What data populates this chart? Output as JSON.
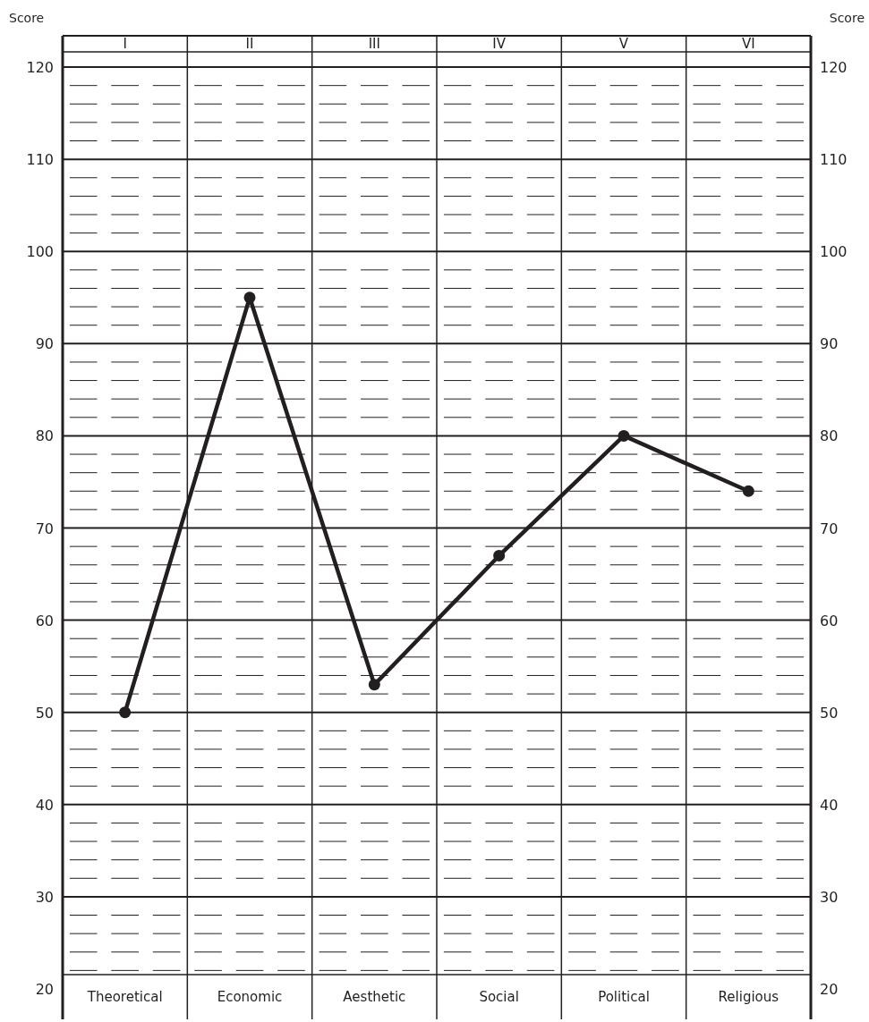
{
  "chart_data": {
    "type": "line",
    "ylabel": "Score",
    "y2label": "Score",
    "categories": [
      "Theoretical",
      "Economic",
      "Aesthetic",
      "Social",
      "Political",
      "Religious"
    ],
    "annotations": [
      "I",
      "II",
      "III",
      "IV",
      "V",
      "VI"
    ],
    "series": [
      {
        "color": "#231f20",
        "values": [
          50,
          95,
          53,
          67,
          80,
          74
        ]
      }
    ],
    "ylim": [
      16.7,
      123.4
    ],
    "y2lim": [
      16.7,
      123.4
    ],
    "yticks": [
      20,
      {
        "value": 22,
        "label": null
      },
      {
        "value": 24,
        "label": null
      },
      {
        "value": 26,
        "label": null
      },
      {
        "value": 28,
        "label": null
      },
      30,
      {
        "value": 32,
        "label": null
      },
      {
        "value": 34,
        "label": null
      },
      {
        "value": 36,
        "label": null
      },
      {
        "value": 38,
        "label": null
      },
      40,
      {
        "value": 42,
        "label": null
      },
      {
        "value": 44,
        "label": null
      },
      {
        "value": 46,
        "label": null
      },
      {
        "value": 48,
        "label": null
      },
      50,
      {
        "value": 52,
        "label": null
      },
      {
        "value": 54,
        "label": null
      },
      {
        "value": 56,
        "label": null
      },
      {
        "value": 58,
        "label": null
      },
      60,
      {
        "value": 62,
        "label": null
      },
      {
        "value": 64,
        "label": null
      },
      {
        "value": 66,
        "label": null
      },
      {
        "value": 68,
        "label": null
      },
      70,
      {
        "value": 72,
        "label": null
      },
      {
        "value": 74,
        "label": null
      },
      {
        "value": 76,
        "label": null
      },
      {
        "value": 78,
        "label": null
      },
      80,
      {
        "value": 82,
        "label": null
      },
      {
        "value": 84,
        "label": null
      },
      {
        "value": 86,
        "label": null
      },
      {
        "value": 88,
        "label": null
      },
      90,
      {
        "value": 92,
        "label": null
      },
      {
        "value": 94,
        "label": null
      },
      {
        "value": 96,
        "label": null
      },
      {
        "value": 98,
        "label": null
      },
      100,
      {
        "value": 102,
        "label": null
      },
      {
        "value": 104,
        "label": null
      },
      {
        "value": 106,
        "label": null
      },
      {
        "value": 108,
        "label": null
      },
      110,
      {
        "value": 112,
        "label": null
      },
      {
        "value": 114,
        "label": null
      },
      {
        "value": 116,
        "label": null
      },
      {
        "value": 118,
        "label": null
      },
      120
    ],
    "y2ticks": [
      20,
      30,
      40,
      50,
      60,
      70,
      80,
      90,
      100,
      110,
      120
    ],
    "grid": true,
    "marker": "circle",
    "line_style": "solid"
  }
}
